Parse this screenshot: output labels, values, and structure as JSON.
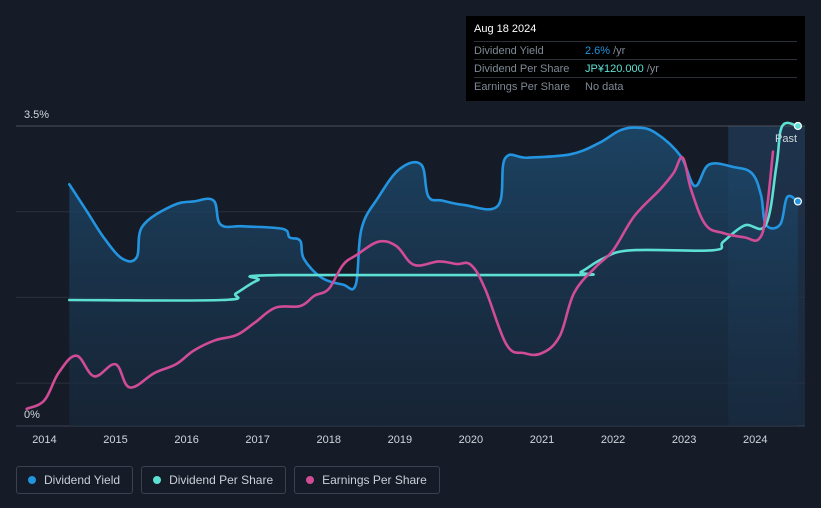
{
  "tooltip": {
    "date": "Aug 18 2024",
    "rows": [
      {
        "label": "Dividend Yield",
        "value": "2.6%",
        "unit": "/yr",
        "color": "#2394df"
      },
      {
        "label": "Dividend Per Share",
        "value": "JP¥120.000",
        "unit": "/yr",
        "color": "#5de0d3"
      },
      {
        "label": "Earnings Per Share",
        "value": "No data",
        "unit": "",
        "color": "#7f8a96"
      }
    ]
  },
  "legend": [
    {
      "label": "Dividend Yield",
      "color": "#2394df"
    },
    {
      "label": "Dividend Per Share",
      "color": "#5de0d3"
    },
    {
      "label": "Earnings Per Share",
      "color": "#d04c96"
    }
  ],
  "chart_data": {
    "type": "line",
    "title": "",
    "xlabel": "",
    "ylabel": "",
    "ylim": [
      0,
      3.5
    ],
    "y_tick_labels": [
      "0%",
      "3.5%"
    ],
    "xlim": [
      2013.6,
      2024.7
    ],
    "x_ticks": [
      2014,
      2015,
      2016,
      2017,
      2018,
      2019,
      2020,
      2021,
      2022,
      2023,
      2024
    ],
    "x_tick_labels": [
      "2014",
      "2015",
      "2016",
      "2017",
      "2018",
      "2019",
      "2020",
      "2021",
      "2022",
      "2023",
      "2024"
    ],
    "past_label": "Past",
    "past_region_start": 2023.62,
    "series": [
      {
        "name": "Dividend Yield",
        "unit": "%",
        "color": "#2394df",
        "points": [
          [
            2014.35,
            2.82
          ],
          [
            2014.6,
            2.5
          ],
          [
            2014.85,
            2.18
          ],
          [
            2015.1,
            1.95
          ],
          [
            2015.3,
            1.97
          ],
          [
            2015.38,
            2.33
          ],
          [
            2015.8,
            2.57
          ],
          [
            2016.1,
            2.62
          ],
          [
            2016.38,
            2.63
          ],
          [
            2016.48,
            2.35
          ],
          [
            2016.8,
            2.33
          ],
          [
            2017.35,
            2.3
          ],
          [
            2017.45,
            2.2
          ],
          [
            2017.6,
            2.16
          ],
          [
            2017.65,
            1.95
          ],
          [
            2017.9,
            1.73
          ],
          [
            2018.2,
            1.65
          ],
          [
            2018.38,
            1.65
          ],
          [
            2018.46,
            2.3
          ],
          [
            2018.7,
            2.67
          ],
          [
            2019.0,
            3.0
          ],
          [
            2019.3,
            3.05
          ],
          [
            2019.4,
            2.68
          ],
          [
            2019.6,
            2.63
          ],
          [
            2019.9,
            2.58
          ],
          [
            2020.38,
            2.57
          ],
          [
            2020.48,
            3.12
          ],
          [
            2020.8,
            3.13
          ],
          [
            2021.4,
            3.17
          ],
          [
            2021.8,
            3.3
          ],
          [
            2022.1,
            3.45
          ],
          [
            2022.35,
            3.48
          ],
          [
            2022.6,
            3.42
          ],
          [
            2022.95,
            3.15
          ],
          [
            2023.15,
            2.8
          ],
          [
            2023.35,
            3.05
          ],
          [
            2023.7,
            3.02
          ],
          [
            2023.95,
            2.95
          ],
          [
            2024.08,
            2.7
          ],
          [
            2024.15,
            2.35
          ],
          [
            2024.35,
            2.35
          ],
          [
            2024.45,
            2.67
          ],
          [
            2024.6,
            2.62
          ]
        ]
      },
      {
        "name": "Dividend Per Share",
        "unit": "JP¥",
        "color": "#5de0d3",
        "points": [
          [
            2014.35,
            1.47
          ],
          [
            2016.5,
            1.47
          ],
          [
            2016.7,
            1.55
          ],
          [
            2017.0,
            1.7
          ],
          [
            2017.3,
            1.76
          ],
          [
            2021.35,
            1.76
          ],
          [
            2021.55,
            1.8
          ],
          [
            2021.85,
            1.95
          ],
          [
            2022.25,
            2.05
          ],
          [
            2023.4,
            2.05
          ],
          [
            2023.55,
            2.15
          ],
          [
            2023.85,
            2.34
          ],
          [
            2024.15,
            2.35
          ],
          [
            2024.3,
            3.05
          ],
          [
            2024.38,
            3.5
          ],
          [
            2024.6,
            3.5
          ]
        ]
      },
      {
        "name": "Earnings Per Share",
        "unit": "JP¥",
        "color": "#d04c96",
        "points": [
          [
            2013.75,
            0.2
          ],
          [
            2014.0,
            0.3
          ],
          [
            2014.2,
            0.62
          ],
          [
            2014.45,
            0.82
          ],
          [
            2014.7,
            0.58
          ],
          [
            2015.0,
            0.72
          ],
          [
            2015.2,
            0.45
          ],
          [
            2015.55,
            0.62
          ],
          [
            2015.85,
            0.72
          ],
          [
            2016.1,
            0.88
          ],
          [
            2016.4,
            1.0
          ],
          [
            2016.7,
            1.06
          ],
          [
            2016.95,
            1.2
          ],
          [
            2017.25,
            1.38
          ],
          [
            2017.6,
            1.4
          ],
          [
            2017.8,
            1.52
          ],
          [
            2018.0,
            1.6
          ],
          [
            2018.2,
            1.88
          ],
          [
            2018.4,
            2.0
          ],
          [
            2018.7,
            2.15
          ],
          [
            2018.95,
            2.1
          ],
          [
            2019.2,
            1.88
          ],
          [
            2019.55,
            1.92
          ],
          [
            2019.8,
            1.89
          ],
          [
            2020.0,
            1.88
          ],
          [
            2020.2,
            1.6
          ],
          [
            2020.5,
            0.95
          ],
          [
            2020.75,
            0.85
          ],
          [
            2021.0,
            0.85
          ],
          [
            2021.25,
            1.05
          ],
          [
            2021.45,
            1.55
          ],
          [
            2021.75,
            1.85
          ],
          [
            2022.0,
            2.05
          ],
          [
            2022.3,
            2.45
          ],
          [
            2022.65,
            2.75
          ],
          [
            2022.85,
            2.95
          ],
          [
            2022.98,
            3.13
          ],
          [
            2023.1,
            2.75
          ],
          [
            2023.3,
            2.35
          ],
          [
            2023.55,
            2.25
          ],
          [
            2023.85,
            2.2
          ],
          [
            2024.05,
            2.18
          ],
          [
            2024.15,
            2.45
          ],
          [
            2024.25,
            3.2
          ]
        ]
      }
    ]
  }
}
